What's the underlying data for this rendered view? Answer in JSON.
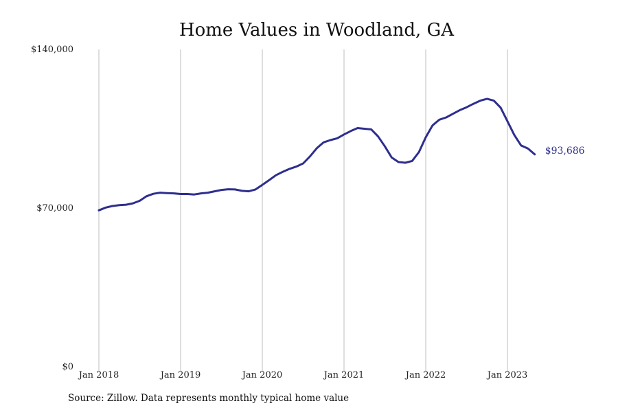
{
  "chart_data": {
    "type": "line",
    "title": "Home Values in Woodland, GA",
    "xlabel": "",
    "ylabel": "",
    "ylim": [
      0,
      140000
    ],
    "yticks": [
      {
        "value": 0,
        "label": "$0"
      },
      {
        "value": 70000,
        "label": "$70,000"
      },
      {
        "value": 140000,
        "label": "$140,000"
      }
    ],
    "xticks": [
      {
        "month": 0,
        "label": "Jan 2018"
      },
      {
        "month": 12,
        "label": "Jan 2019"
      },
      {
        "month": 24,
        "label": "Jan 2020"
      },
      {
        "month": 36,
        "label": "Jan 2021"
      },
      {
        "month": 48,
        "label": "Jan 2022"
      },
      {
        "month": 60,
        "label": "Jan 2023"
      }
    ],
    "grid": "vertical",
    "line_color": "#2e2e8f",
    "end_label": "$93,686",
    "series": [
      {
        "x": [
          "2018-01",
          "2018-02",
          "2018-03",
          "2018-04",
          "2018-05",
          "2018-06",
          "2018-07",
          "2018-08",
          "2018-09",
          "2018-10",
          "2018-11",
          "2018-12",
          "2019-01",
          "2019-02",
          "2019-03",
          "2019-04",
          "2019-05",
          "2019-06",
          "2019-07",
          "2019-08",
          "2019-09",
          "2019-10",
          "2019-11",
          "2019-12",
          "2020-01",
          "2020-02",
          "2020-03",
          "2020-04",
          "2020-05",
          "2020-06",
          "2020-07",
          "2020-08",
          "2020-09",
          "2020-10",
          "2020-11",
          "2020-12",
          "2021-01",
          "2021-02",
          "2021-03",
          "2021-04",
          "2021-05",
          "2021-06",
          "2021-07",
          "2021-08",
          "2021-09",
          "2021-10",
          "2021-11",
          "2021-12",
          "2022-01",
          "2022-02",
          "2022-03",
          "2022-04",
          "2022-05",
          "2022-06",
          "2022-07",
          "2022-08",
          "2022-09",
          "2022-10",
          "2022-11",
          "2022-12",
          "2023-01",
          "2023-02",
          "2023-03",
          "2023-04",
          "2023-05"
        ],
        "y": [
          69000,
          70200,
          70900,
          71300,
          71500,
          72100,
          73200,
          75200,
          76300,
          76800,
          76600,
          76500,
          76200,
          76200,
          76000,
          76500,
          76800,
          77400,
          78000,
          78300,
          78200,
          77600,
          77400,
          78200,
          80200,
          82300,
          84500,
          86000,
          87300,
          88300,
          89700,
          92800,
          96400,
          99000,
          100000,
          100800,
          102500,
          104000,
          105300,
          105000,
          104700,
          101600,
          97200,
          92300,
          90300,
          90000,
          90800,
          94700,
          101200,
          106500,
          109000,
          110000,
          111600,
          113200,
          114500,
          116000,
          117400,
          118200,
          117400,
          114300,
          108300,
          102300,
          97600,
          96300,
          93686
        ]
      }
    ]
  },
  "footer": {
    "source": "Source: Zillow. Data represents monthly typical home value"
  }
}
